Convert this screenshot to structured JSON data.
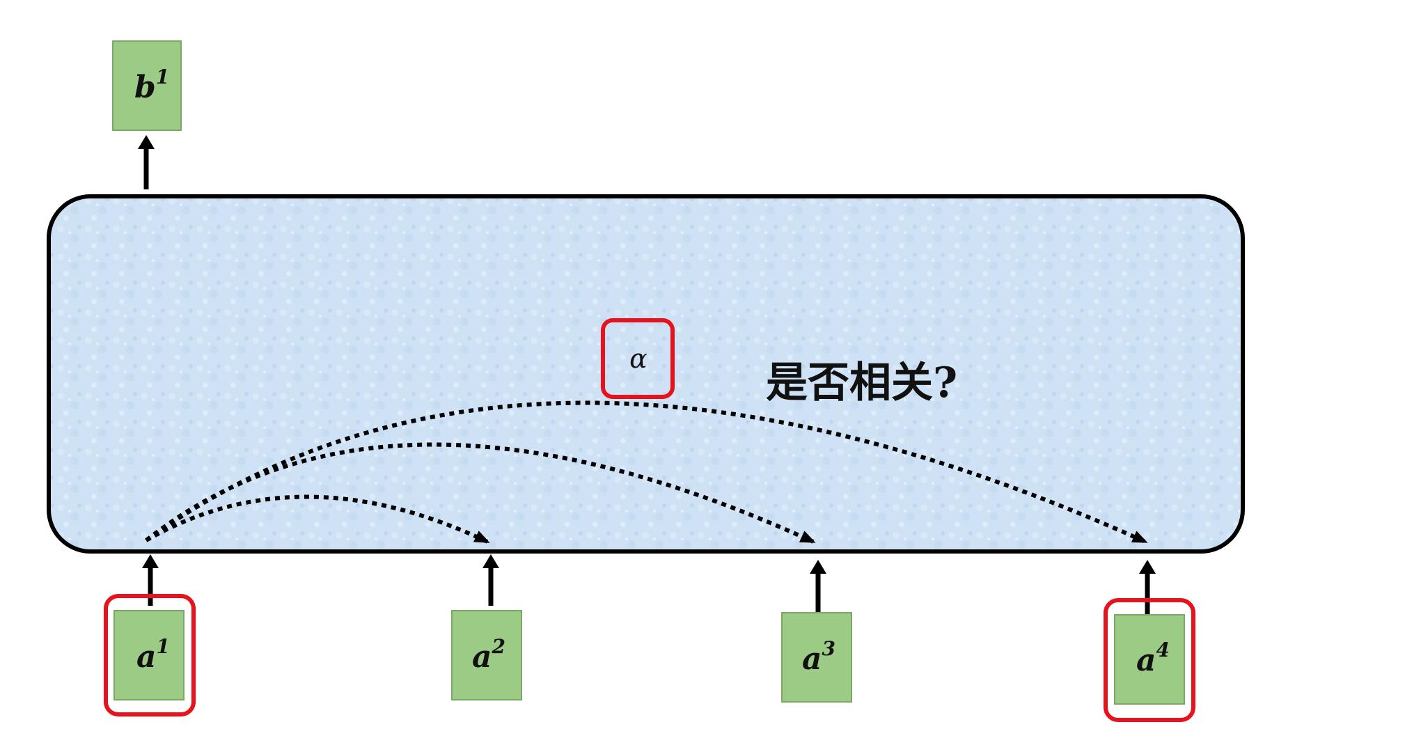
{
  "diagram": {
    "output": {
      "base": "b",
      "sup": "1"
    },
    "inputs": [
      {
        "base": "a",
        "sup": "1",
        "highlighted": true
      },
      {
        "base": "a",
        "sup": "2",
        "highlighted": false
      },
      {
        "base": "a",
        "sup": "3",
        "highlighted": false
      },
      {
        "base": "a",
        "sup": "4",
        "highlighted": true
      }
    ],
    "score_label": "α",
    "question": "是否相关?"
  },
  "colors": {
    "node_fill": "#9ccb86",
    "node_stroke": "#7aa866",
    "block_fill": "#cfe2f5",
    "highlight": "#e8121c",
    "line": "#000000"
  }
}
